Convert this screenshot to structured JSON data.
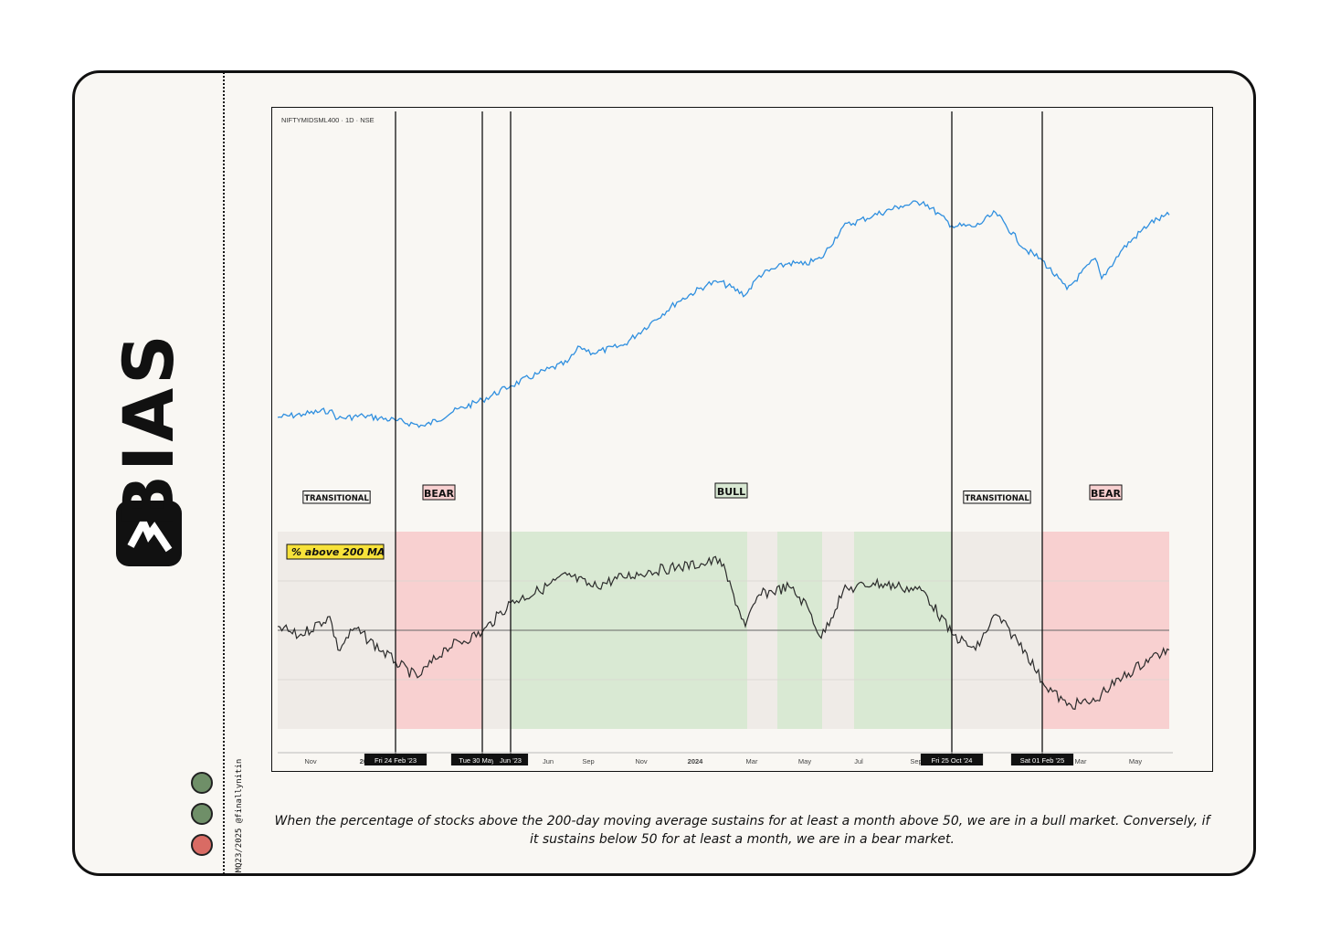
{
  "brand": {
    "name": "BIAS"
  },
  "credit": "MQ23/2025 @finallynitin",
  "status_dots": [
    {
      "color": "#6f8f68"
    },
    {
      "color": "#6f8f68"
    },
    {
      "color": "#d96b64"
    }
  ],
  "caption": "When the percentage of stocks above the 200-day moving average sustains for at least a month above 50, we are in a bull market. Conversely, if it sustains below 50 for at least a month, we are in a bear market.",
  "colors": {
    "price_line": "#2f8fdf",
    "breadth_line": "#2b2b2b",
    "bull_band": "#d9e9d3",
    "bear_band": "#f8d0d0",
    "transitional_band": "#efebe7",
    "indicator_label_bg": "#f7e23a"
  },
  "chart_data": {
    "type": "line",
    "symbol_label": "NIFTYMIDSML400 · 1D · NSE",
    "indicator_label": "% above 200 MA",
    "x_ticks": [
      "Nov",
      "2023",
      "Feb",
      "Mar",
      "Jun",
      "Sep",
      "Nov",
      "2024",
      "Mar",
      "May",
      "Jul",
      "Sep",
      "2025",
      "Mar",
      "May"
    ],
    "x_range": [
      "2022-10-18",
      "2025-06-20"
    ],
    "regime_dates": [
      {
        "label": "Fri 24 Feb '23",
        "date": "2023-02-24"
      },
      {
        "label": "Tue 30 May '23",
        "date": "2023-05-30"
      },
      {
        "label": "Jun '23",
        "date": "2023-06-30"
      },
      {
        "label": "Fri 25 Oct '24",
        "date": "2024-10-25"
      },
      {
        "label": "Sat 01 Feb '25",
        "date": "2025-02-01"
      }
    ],
    "regimes": [
      {
        "name": "TRANSITIONAL",
        "start": "2022-10-18",
        "end": "2023-02-24"
      },
      {
        "name": "BEAR",
        "start": "2023-02-24",
        "end": "2023-05-30"
      },
      {
        "name": "BULL",
        "start": "2023-06-30",
        "end": "2024-10-25"
      },
      {
        "name": "TRANSITIONAL",
        "start": "2024-10-25",
        "end": "2025-02-01"
      },
      {
        "name": "BEAR",
        "start": "2025-02-01",
        "end": "2025-06-20"
      }
    ],
    "shading": [
      {
        "type": "transitional",
        "start": "2022-10-18",
        "end": "2023-02-24"
      },
      {
        "type": "bear",
        "start": "2023-02-24",
        "end": "2023-05-30"
      },
      {
        "type": "transitional",
        "start": "2023-05-30",
        "end": "2023-06-30"
      },
      {
        "type": "bull",
        "start": "2023-06-30",
        "end": "2024-03-15"
      },
      {
        "type": "transitional",
        "start": "2024-03-15",
        "end": "2024-04-17"
      },
      {
        "type": "bull",
        "start": "2024-04-17",
        "end": "2024-06-05"
      },
      {
        "type": "transitional",
        "start": "2024-06-05",
        "end": "2024-07-10"
      },
      {
        "type": "bull",
        "start": "2024-07-10",
        "end": "2024-10-25"
      },
      {
        "type": "transitional",
        "start": "2024-10-25",
        "end": "2025-02-01"
      },
      {
        "type": "bear",
        "start": "2025-02-01",
        "end": "2025-06-20"
      }
    ],
    "breadth_ylim": [
      0,
      100
    ],
    "breadth_midline": 50,
    "series": [
      {
        "key": "price",
        "values": [
          [
            "2022-10-18",
            8780
          ],
          [
            "2022-11-15",
            8880
          ],
          [
            "2022-12-14",
            9000
          ],
          [
            "2022-12-23",
            8740
          ],
          [
            "2023-01-20",
            8830
          ],
          [
            "2023-02-24",
            8680
          ],
          [
            "2023-03-28",
            8500
          ],
          [
            "2023-04-28",
            8960
          ],
          [
            "2023-05-30",
            9330
          ],
          [
            "2023-06-30",
            9780
          ],
          [
            "2023-07-31",
            10180
          ],
          [
            "2023-08-31",
            10520
          ],
          [
            "2023-09-14",
            11020
          ],
          [
            "2023-09-28",
            10820
          ],
          [
            "2023-10-31",
            11060
          ],
          [
            "2023-11-30",
            11760
          ],
          [
            "2023-12-29",
            12430
          ],
          [
            "2024-01-31",
            12990
          ],
          [
            "2024-02-14",
            13080
          ],
          [
            "2024-03-13",
            12660
          ],
          [
            "2024-03-28",
            13280
          ],
          [
            "2024-04-30",
            13680
          ],
          [
            "2024-05-15",
            13620
          ],
          [
            "2024-06-04",
            13820
          ],
          [
            "2024-06-28",
            14830
          ],
          [
            "2024-07-31",
            15180
          ],
          [
            "2024-08-30",
            15480
          ],
          [
            "2024-09-24",
            15620
          ],
          [
            "2024-10-25",
            14860
          ],
          [
            "2024-11-20",
            14830
          ],
          [
            "2024-12-12",
            15270
          ],
          [
            "2025-01-13",
            14120
          ],
          [
            "2025-02-01",
            13760
          ],
          [
            "2025-02-28",
            12840
          ],
          [
            "2025-03-31",
            13820
          ],
          [
            "2025-04-07",
            13180
          ],
          [
            "2025-04-30",
            14120
          ],
          [
            "2025-05-30",
            14950
          ],
          [
            "2025-06-20",
            15200
          ]
        ]
      },
      {
        "key": "breadth",
        "values": [
          [
            "2022-10-18",
            52
          ],
          [
            "2022-11-10",
            47
          ],
          [
            "2022-12-14",
            57
          ],
          [
            "2022-12-23",
            40
          ],
          [
            "2023-01-10",
            51
          ],
          [
            "2023-02-24",
            34
          ],
          [
            "2023-03-20",
            26
          ],
          [
            "2023-04-20",
            41
          ],
          [
            "2023-05-30",
            49
          ],
          [
            "2023-06-30",
            64
          ],
          [
            "2023-07-31",
            70
          ],
          [
            "2023-08-31",
            78
          ],
          [
            "2023-09-28",
            72
          ],
          [
            "2023-10-31",
            77
          ],
          [
            "2023-11-30",
            80
          ],
          [
            "2023-12-29",
            82
          ],
          [
            "2024-01-31",
            84
          ],
          [
            "2024-02-14",
            86
          ],
          [
            "2024-03-13",
            52
          ],
          [
            "2024-03-28",
            68
          ],
          [
            "2024-04-30",
            72
          ],
          [
            "2024-05-20",
            62
          ],
          [
            "2024-06-04",
            46
          ],
          [
            "2024-06-28",
            70
          ],
          [
            "2024-07-31",
            74
          ],
          [
            "2024-08-30",
            72
          ],
          [
            "2024-09-24",
            70
          ],
          [
            "2024-10-25",
            48
          ],
          [
            "2024-11-20",
            40
          ],
          [
            "2024-12-12",
            58
          ],
          [
            "2025-01-13",
            40
          ],
          [
            "2025-02-01",
            24
          ],
          [
            "2025-02-28",
            12
          ],
          [
            "2025-03-31",
            14
          ],
          [
            "2025-04-07",
            18
          ],
          [
            "2025-04-30",
            26
          ],
          [
            "2025-05-30",
            36
          ],
          [
            "2025-06-20",
            40
          ]
        ]
      }
    ]
  }
}
